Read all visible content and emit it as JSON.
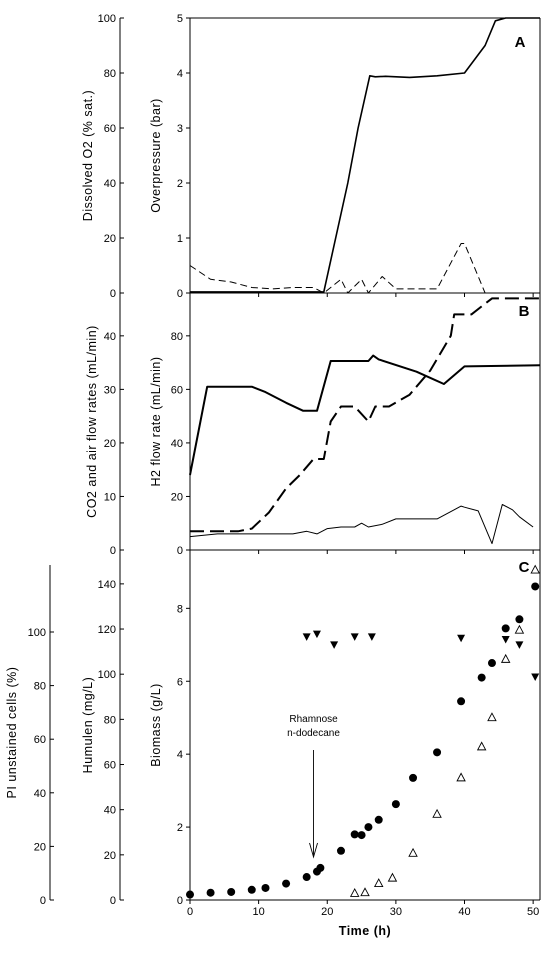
{
  "chart_data": [
    {
      "panel": "A",
      "type": "line",
      "xlim": [
        0,
        51
      ],
      "x_ticks": [
        0,
        10,
        20,
        30,
        40,
        50
      ],
      "left_axis": {
        "label": "Dissolved O2 (% sat.)",
        "ylim": [
          0,
          100
        ],
        "ticks": [
          0,
          20,
          40,
          60,
          80,
          100
        ]
      },
      "right_axis": {
        "label": "Overpressure (bar)",
        "ylim": [
          0,
          5
        ],
        "ticks": [
          0,
          1,
          2,
          3,
          4,
          5
        ]
      },
      "series": [
        {
          "axis": "right",
          "style": "solid",
          "stroke_width": 1.6,
          "points": [
            [
              0,
              0.02
            ],
            [
              17,
              0.02
            ],
            [
              19.5,
              0.02
            ],
            [
              23,
              2.0
            ],
            [
              24.5,
              3.0
            ],
            [
              26.2,
              3.95
            ],
            [
              27,
              3.93
            ],
            [
              28.5,
              3.94
            ],
            [
              32,
              3.92
            ],
            [
              36,
              3.95
            ],
            [
              40,
              4.0
            ],
            [
              43,
              4.5
            ],
            [
              44.5,
              4.95
            ],
            [
              46,
              5.0
            ],
            [
              51,
              5.0
            ]
          ]
        },
        {
          "axis": "left",
          "style": "dash",
          "stroke_width": 1.0,
          "points": [
            [
              0,
              10
            ],
            [
              3,
              5
            ],
            [
              6,
              4
            ],
            [
              9,
              2
            ],
            [
              12,
              1.5
            ],
            [
              15,
              2
            ],
            [
              18,
              2
            ],
            [
              19.5,
              0
            ],
            [
              22,
              5
            ],
            [
              23,
              0
            ],
            [
              25,
              5
            ],
            [
              26,
              0
            ],
            [
              28,
              6
            ],
            [
              30,
              1.5
            ],
            [
              36,
              1.5
            ],
            [
              39.5,
              18
            ],
            [
              40,
              18
            ],
            [
              43,
              0
            ],
            [
              51,
              0
            ]
          ]
        }
      ]
    },
    {
      "panel": "B",
      "type": "line",
      "xlim": [
        0,
        51
      ],
      "x_ticks": [
        0,
        10,
        20,
        30,
        40,
        50
      ],
      "left_axis": {
        "label": "CO2 and air flow rates (mL/min)",
        "ylim": [
          0,
          48
        ],
        "ticks": [
          0,
          10,
          20,
          30,
          40
        ]
      },
      "right_axis": {
        "label": "H2 flow rate (mL/min)",
        "ylim": [
          0,
          96
        ],
        "ticks": [
          0,
          20,
          40,
          60,
          80
        ]
      },
      "series": [
        {
          "axis": "left",
          "style": "solid",
          "stroke_width": 2.0,
          "points": [
            [
              0,
              14
            ],
            [
              2.5,
              30.5
            ],
            [
              9,
              30.5
            ],
            [
              11,
              29.5
            ],
            [
              14,
              27.5
            ],
            [
              16.5,
              26
            ],
            [
              18.5,
              26
            ],
            [
              20.5,
              35.3
            ],
            [
              24,
              35.3
            ],
            [
              26,
              35.3
            ],
            [
              26.7,
              36.3
            ],
            [
              27.5,
              35.6
            ],
            [
              33,
              33.3
            ],
            [
              37,
              31
            ],
            [
              40,
              34.3
            ],
            [
              51,
              34.5
            ]
          ]
        },
        {
          "axis": "left",
          "style": "dash",
          "stroke_width": 2.0,
          "points": [
            [
              0,
              3.5
            ],
            [
              7,
              3.5
            ],
            [
              9,
              4
            ],
            [
              11.5,
              7
            ],
            [
              14,
              11.5
            ],
            [
              16,
              14
            ],
            [
              18,
              17
            ],
            [
              19.5,
              17
            ],
            [
              20.5,
              24
            ],
            [
              22,
              26.8
            ],
            [
              24,
              26.8
            ],
            [
              26,
              24
            ],
            [
              27,
              26.8
            ],
            [
              29,
              26.8
            ],
            [
              32,
              29
            ],
            [
              35,
              33.5
            ],
            [
              38,
              40
            ],
            [
              38.5,
              44
            ],
            [
              41,
              44
            ],
            [
              43,
              46
            ],
            [
              44,
              47
            ],
            [
              51,
              47
            ]
          ]
        },
        {
          "axis": "left",
          "style": "solid",
          "stroke_width": 1.0,
          "points": [
            [
              0,
              2.5
            ],
            [
              4,
              3
            ],
            [
              8,
              3
            ],
            [
              12,
              3
            ],
            [
              15,
              3
            ],
            [
              17,
              3.5
            ],
            [
              18.5,
              3
            ],
            [
              20,
              4
            ],
            [
              22,
              4.3
            ],
            [
              24,
              4.3
            ],
            [
              25,
              5
            ],
            [
              26,
              4.3
            ],
            [
              28,
              4.8
            ],
            [
              30,
              5.8
            ],
            [
              33,
              5.8
            ],
            [
              36,
              5.8
            ],
            [
              39.5,
              8.2
            ],
            [
              40,
              8.0
            ],
            [
              42,
              7.3
            ],
            [
              44,
              1.2
            ],
            [
              45.5,
              8.5
            ],
            [
              47,
              7.5
            ],
            [
              48,
              6.2
            ],
            [
              50,
              4.3
            ]
          ]
        }
      ]
    },
    {
      "panel": "C",
      "type": "scatter",
      "xlim": [
        0,
        51
      ],
      "x_ticks": [
        0,
        10,
        20,
        30,
        40,
        50
      ],
      "xlabel": "Time (h)",
      "outer_left_axis": {
        "label": "PI unstained cells (%)",
        "ylim": [
          0,
          125
        ],
        "ticks": [
          0,
          20,
          40,
          60,
          80,
          100
        ]
      },
      "left_axis": {
        "label": "Humulen (mg/L)",
        "ylim": [
          0,
          155
        ],
        "ticks": [
          0,
          20,
          40,
          60,
          80,
          100,
          120,
          140
        ]
      },
      "right_axis": {
        "label": "Biomass (g/L)",
        "ylim": [
          0,
          9.6
        ],
        "ticks": [
          0,
          2,
          4,
          6,
          8
        ]
      },
      "annotation": {
        "lines": [
          "Rhamnose",
          "n-dodecane"
        ],
        "x": 18
      },
      "series": [
        {
          "marker": "circle-filled",
          "axis": "right",
          "points": [
            [
              0,
              0.15
            ],
            [
              3,
              0.2
            ],
            [
              6,
              0.22
            ],
            [
              9,
              0.28
            ],
            [
              11,
              0.33
            ],
            [
              14,
              0.45
            ],
            [
              17,
              0.63
            ],
            [
              18.5,
              0.78
            ],
            [
              19,
              0.88
            ],
            [
              22,
              1.35
            ],
            [
              24,
              1.8
            ],
            [
              25,
              1.78
            ],
            [
              26,
              2.0
            ],
            [
              27.5,
              2.2
            ],
            [
              30,
              2.63
            ],
            [
              32.5,
              3.35
            ],
            [
              36,
              4.05
            ],
            [
              39.5,
              5.45
            ],
            [
              42.5,
              6.1
            ],
            [
              44,
              6.5
            ],
            [
              46,
              7.45
            ],
            [
              48,
              7.7
            ],
            [
              50.3,
              8.6
            ]
          ]
        },
        {
          "marker": "triangle-open",
          "axis": "right",
          "points": [
            [
              24,
              0.18
            ],
            [
              25.5,
              0.2
            ],
            [
              27.5,
              0.45
            ],
            [
              29.5,
              0.6
            ],
            [
              32.5,
              1.28
            ],
            [
              36,
              2.35
            ],
            [
              39.5,
              3.35
            ],
            [
              42.5,
              4.2
            ],
            [
              44,
              5.0
            ],
            [
              46,
              6.6
            ],
            [
              48,
              7.4
            ],
            [
              50.3,
              9.05
            ]
          ]
        },
        {
          "marker": "triangle-down-filled",
          "axis": "outer_left",
          "points": [
            [
              17,
              98
            ],
            [
              18.5,
              99
            ],
            [
              21,
              95
            ],
            [
              24,
              98
            ],
            [
              26.5,
              98
            ],
            [
              39.5,
              97.5
            ],
            [
              46,
              97
            ],
            [
              48,
              95
            ],
            [
              50.3,
              83
            ]
          ]
        }
      ]
    }
  ],
  "panels": {
    "A": {
      "letter": "A"
    },
    "B": {
      "letter": "B"
    },
    "C": {
      "letter": "C"
    }
  }
}
